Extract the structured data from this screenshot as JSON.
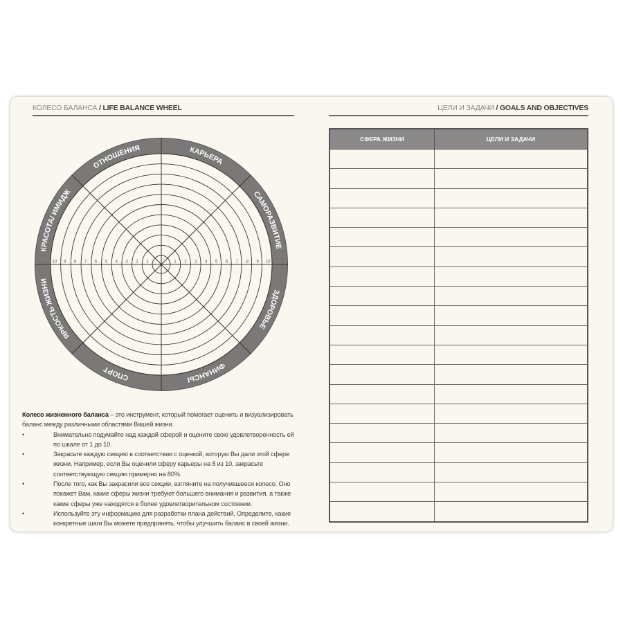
{
  "left_page": {
    "header_ru": "КОЛЕСО БАЛАНСА",
    "header_sep": " / ",
    "header_en": "LIFE BALANCE WHEEL",
    "wheel": {
      "sectors": [
        "КАРЬЕРА",
        "САМОРАЗВИТИЕ",
        "ЗДОРОВЬЕ",
        "ФИНАНСЫ",
        "СПОРТ",
        "ЯРКОСТЬ ЖИЗНИ",
        "КРАСОТА/ ИМИДЖ",
        "ОТНОШЕНИЯ"
      ],
      "scale": [
        "1",
        "2",
        "3",
        "4",
        "5",
        "6",
        "7",
        "8",
        "9",
        "10"
      ],
      "ring_color": "#7b7977"
    },
    "description": {
      "title": "Колесо жизненного баланса",
      "intro": " – это инструмент, который помогает оценить и визуализировать баланс между различными областями Вашей жизни.",
      "bullets": [
        "Внимательно подумайте над каждой сферой и оцените свою удовлетворенность ей по шкале от 1 до 10.",
        "Закрасьте каждую секцию в соответствии с оценкой, которую Вы дали этой сфере жизни. Например, если Вы оценили сферу карьеры на 8 из 10, закрасьте соответствующую секцию примерно на 80%.",
        "После того, как Вы закрасили все секции, взгляните на получившееся колесо. Оно покажет Вам, какие сферы жизни требуют большего внимания и развития, а также какие сферы уже находятся в более удовлетворительном состоянии.",
        "Используйте эту информацию для разработки плана действий. Определите, какие конкретные шаги Вы можете предпринять, чтобы улучшить баланс в своей жизни."
      ]
    }
  },
  "right_page": {
    "header_ru": "ЦЕЛИ И ЗАДАЧИ",
    "header_sep": " / ",
    "header_en": "GOALS AND OBJECTIVES",
    "table": {
      "columns": [
        "СФЕРА ЖИЗНИ",
        "ЦЕЛИ И ЗАДАЧИ"
      ],
      "empty_rows": 19
    }
  }
}
